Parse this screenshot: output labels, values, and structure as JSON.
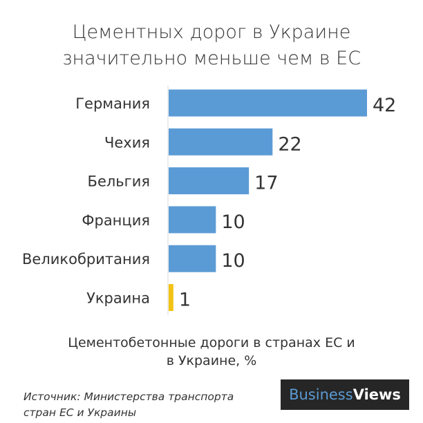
{
  "chart_data": {
    "type": "bar",
    "orientation": "horizontal",
    "title": "Цементных дорог в Украине значительно меньше чем в ЕС",
    "title_lines": [
      "Цементных дорог в Украине",
      "значительно меньше чем в ЕС"
    ],
    "categories": [
      "Германия",
      "Чехия",
      "Бельгия",
      "Франция",
      "Великобритания",
      "Украина"
    ],
    "values": [
      42,
      22,
      17,
      10,
      10,
      1
    ],
    "value_labels": [
      "42",
      "22",
      "17",
      "10",
      "10",
      "1"
    ],
    "bar_colors": [
      "#5b9bd5",
      "#5b9bd5",
      "#5b9bd5",
      "#5b9bd5",
      "#5b9bd5",
      "#f2c314"
    ],
    "xlim": [
      0,
      42
    ],
    "xlabel": "Цементобетонные дороги в странах ЕС и в Украине, %",
    "xlabel_lines": [
      "Цементобетонные дороги в странах ЕС и",
      "в Украине, %"
    ],
    "grid": false,
    "legend": "none"
  },
  "source": {
    "lines": [
      "Источник: Министерства транспорта",
      "стран ЕС и Украины"
    ]
  },
  "logo": {
    "part1": "Business",
    "part2": "Views"
  },
  "colors": {
    "bar": "#5b9bd5",
    "highlight": "#f2c314",
    "axis": "#d9d9d9",
    "text": "#333333",
    "logo_bg": "#262626"
  }
}
